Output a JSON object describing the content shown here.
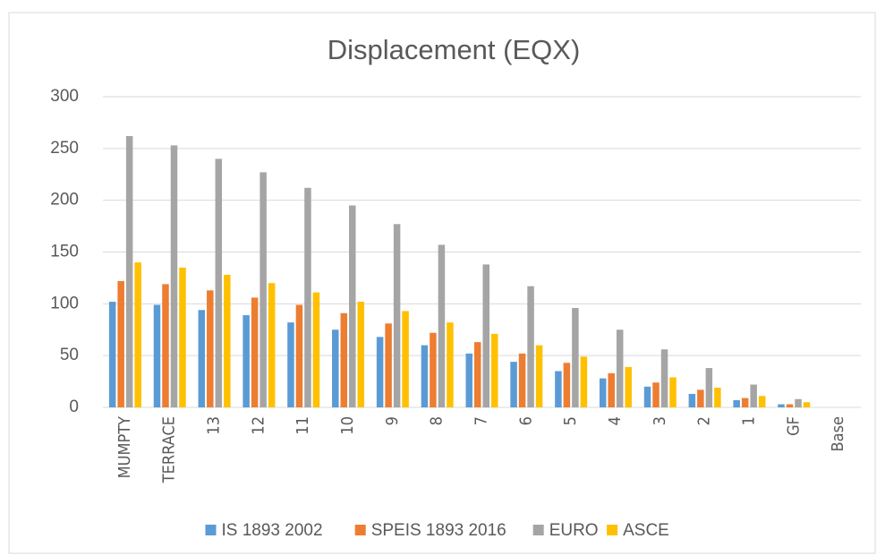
{
  "chart_data": {
    "type": "bar",
    "title": "Displacement (EQX)",
    "categories": [
      "MUMPTY",
      "TERRACE",
      "13",
      "12",
      "11",
      "10",
      "9",
      "8",
      "7",
      "6",
      "5",
      "4",
      "3",
      "2",
      "1",
      "GF",
      "Base"
    ],
    "series": [
      {
        "name": "IS 1893 2002",
        "color": "#5b9bd5",
        "values": [
          102,
          99,
          94,
          89,
          82,
          75,
          68,
          60,
          52,
          44,
          35,
          28,
          20,
          13,
          7,
          3,
          0
        ]
      },
      {
        "name": "SPEIS 1893 2016",
        "color": "#ed7d31",
        "values": [
          122,
          119,
          113,
          106,
          99,
          91,
          81,
          72,
          63,
          52,
          43,
          33,
          24,
          17,
          9,
          3,
          0
        ]
      },
      {
        "name": "EURO",
        "color": "#a5a5a5",
        "values": [
          262,
          253,
          240,
          227,
          212,
          195,
          177,
          157,
          138,
          117,
          96,
          75,
          56,
          38,
          22,
          8,
          0
        ]
      },
      {
        "name": "ASCE",
        "color": "#ffc000",
        "values": [
          140,
          135,
          128,
          120,
          111,
          102,
          93,
          82,
          71,
          60,
          49,
          39,
          29,
          19,
          11,
          5,
          0
        ]
      }
    ],
    "ylim": [
      0,
      300
    ],
    "yticks": [
      0,
      50,
      100,
      150,
      200,
      250,
      300
    ],
    "grid": true,
    "legend": "bottom"
  }
}
